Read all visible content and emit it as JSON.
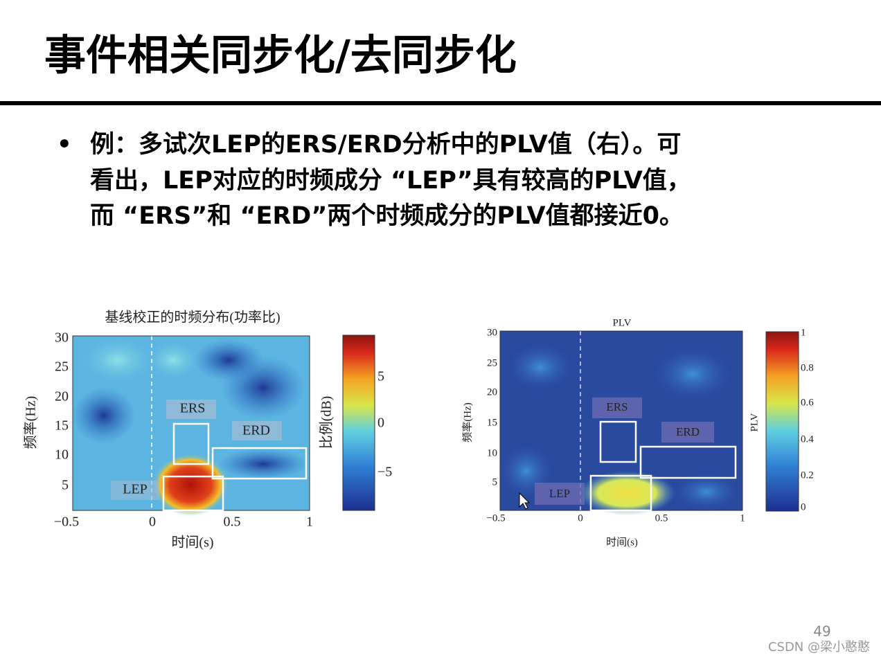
{
  "header": {
    "title": "事件相关同步化/去同步化"
  },
  "body": {
    "bullet": "•",
    "lines": [
      "例：多试次LEP的ERS/ERD分析中的PLV值（右）。可",
      "看出，LEP对应的时频成分 “LEP”具有较高的PLV值，",
      "而 “ERS”和 “ERD”两个时频成分的PLV值都接近0。"
    ]
  },
  "figures": [
    {
      "title": "基线校正的时频分布(功率比)",
      "xlabel": "时间(s)",
      "ylabel": "频率(Hz)",
      "colorbar_label": "比例(dB)",
      "xticks": [
        "−0.5",
        "0",
        "0.5",
        "1"
      ],
      "yticks": [
        "30",
        "25",
        "20",
        "15",
        "10",
        "5"
      ],
      "colorbar_ticks": [
        "5",
        "0",
        "−5"
      ],
      "boxes": [
        "ERS",
        "ERD",
        "LEP"
      ]
    },
    {
      "title": "PLV",
      "xlabel": "时间(s)",
      "ylabel": "频率(Hz)",
      "colorbar_label": "PLV",
      "xticks": [
        "−0.5",
        "0",
        "0.5",
        "1"
      ],
      "yticks": [
        "30",
        "25",
        "20",
        "15",
        "10",
        "5"
      ],
      "colorbar_ticks": [
        "1",
        "0.8",
        "0.6",
        "0.4",
        "0.2",
        "0"
      ],
      "boxes": [
        "ERS",
        "ERD",
        "LEP"
      ]
    }
  ],
  "footer": {
    "page_number": "49",
    "watermark": "CSDN @梁小憨憨"
  }
}
